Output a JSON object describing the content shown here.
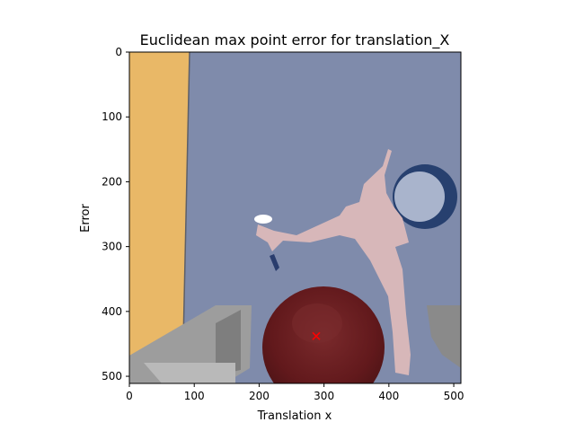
{
  "chart_data": {
    "type": "scatter",
    "title": "Euclidean max point error for translation_X",
    "xlabel": "Translation x",
    "ylabel": "Error",
    "xlim": [
      0,
      511
    ],
    "ylim": [
      511,
      0
    ],
    "y_axis_inverted": true,
    "x_ticks": [
      0,
      100,
      200,
      300,
      400,
      500
    ],
    "y_ticks": [
      0,
      100,
      200,
      300,
      400,
      500
    ],
    "grid": false,
    "background": "image",
    "series": [
      {
        "marker": "x",
        "color": "#ff0000",
        "points": [
          {
            "x": 288,
            "y": 438
          }
        ]
      }
    ]
  },
  "colors": {
    "marker": "#ff0000",
    "wall_blue": "#7f8bab",
    "wood": "#e9b867",
    "ball": "#6a1f22",
    "figure_pink": "#d7b7b9",
    "gray_object": "#9d9d9d"
  }
}
